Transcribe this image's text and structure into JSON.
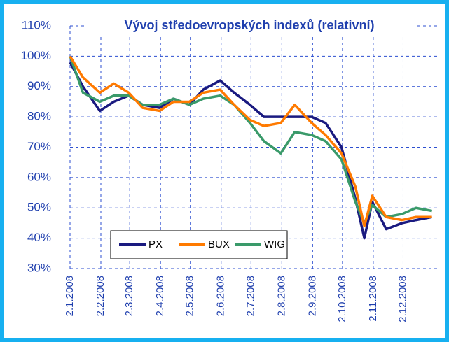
{
  "chart_data": {
    "type": "line",
    "title": "Vývoj středoevropských indexů (relativní)",
    "x": [
      "2.1.2008",
      "15.1.2008",
      "1.2.2008",
      "15.2.2008",
      "1.3.2008",
      "15.3.2008",
      "1.4.2008",
      "15.4.2008",
      "1.5.2008",
      "15.5.2008",
      "1.6.2008",
      "15.6.2008",
      "1.7.2008",
      "15.7.2008",
      "1.8.2008",
      "15.8.2008",
      "1.9.2008",
      "15.9.2008",
      "1.10.2008",
      "15.10.2008",
      "24.10.2008",
      "1.11.2008",
      "15.11.2008",
      "1.12.2008",
      "15.12.2008",
      "31.12.2008"
    ],
    "series": [
      {
        "name": "PX",
        "color": "#1a1a80",
        "values": [
          98,
          90,
          82,
          85,
          87,
          84,
          83,
          86,
          84,
          89,
          92,
          88,
          84,
          80,
          80,
          80,
          80,
          78,
          70,
          53,
          40,
          52,
          43,
          45,
          46,
          47
        ]
      },
      {
        "name": "BUX",
        "color": "#ff7a00",
        "values": [
          100,
          93,
          88,
          91,
          88,
          83,
          82,
          85,
          85,
          88,
          89,
          84,
          79,
          77,
          78,
          84,
          78,
          74,
          68,
          57,
          44,
          54,
          47,
          46,
          47,
          47
        ]
      },
      {
        "name": "WIG",
        "color": "#3a9a6a",
        "values": [
          100,
          88,
          85,
          87,
          87,
          84,
          84,
          86,
          84,
          86,
          87,
          84,
          78,
          72,
          68,
          75,
          74,
          72,
          66,
          52,
          45,
          51,
          47,
          48,
          50,
          49
        ]
      }
    ],
    "xlim": [
      "2.1.2008",
      "8.1.2009"
    ],
    "xticks": [
      "2.1.2008",
      "2.2.2008",
      "2.3.2008",
      "2.4.2008",
      "2.5.2008",
      "2.6.2008",
      "2.7.2008",
      "2.8.2008",
      "2.9.2008",
      "2.10.2008",
      "2.11.2008",
      "2.12.2008"
    ],
    "ylim": [
      30,
      110
    ],
    "yticks": [
      {
        "value": 30,
        "label": "30%"
      },
      {
        "value": 40,
        "label": "40%"
      },
      {
        "value": 50,
        "label": "50%"
      },
      {
        "value": 60,
        "label": "60%"
      },
      {
        "value": 70,
        "label": "70%"
      },
      {
        "value": 80,
        "label": "80%"
      },
      {
        "value": 90,
        "label": "90%"
      },
      {
        "value": 100,
        "label": "100%"
      },
      {
        "value": 110,
        "label": "110%"
      }
    ],
    "grid": true,
    "legend": "lower left"
  }
}
